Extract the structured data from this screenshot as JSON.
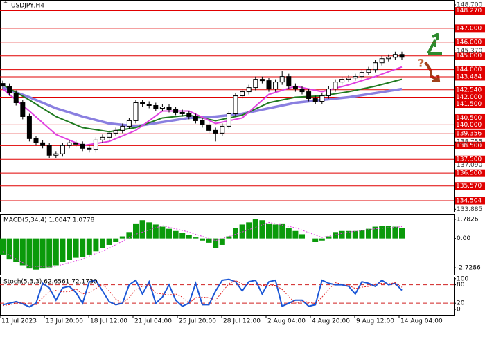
{
  "chart_data": [
    {
      "type": "candlestick",
      "title": "USDJPY,H4",
      "x_labels": [
        "11 Jul 2023",
        "13 Jul 20:00",
        "18 Jul 12:00",
        "21 Jul 04:00",
        "25 Jul 20:00",
        "28 Jul 12:00",
        "2 Aug 04:00",
        "4 Aug 20:00",
        "9 Aug 12:00",
        "14 Aug 04:00"
      ],
      "open": [
        143.0,
        142.8,
        142.3,
        141.6,
        140.6,
        139.0,
        138.7,
        138.5,
        137.8,
        137.9,
        138.5,
        138.7,
        138.6,
        138.3,
        138.2,
        138.9,
        139.1,
        139.4,
        139.6,
        139.9,
        140.3,
        141.6,
        141.5,
        141.4,
        141.2,
        141.3,
        141.1,
        140.9,
        140.8,
        140.6,
        140.3,
        140.0,
        139.6,
        139.4,
        139.9,
        140.8,
        142.1,
        142.4,
        142.7,
        143.3,
        143.2,
        142.6,
        143.1,
        143.5,
        142.8,
        142.6,
        142.4,
        141.9,
        141.7,
        142.1,
        142.6,
        143.1,
        143.3,
        143.4,
        143.5,
        143.8,
        144.0,
        144.5,
        144.8,
        144.9,
        145.1
      ],
      "high": [
        143.2,
        143.0,
        142.5,
        141.8,
        140.8,
        139.2,
        138.9,
        138.7,
        138.1,
        138.7,
        138.9,
        138.9,
        138.8,
        138.5,
        139.1,
        139.3,
        139.6,
        139.8,
        140.1,
        140.5,
        141.8,
        141.8,
        141.7,
        141.6,
        141.5,
        141.5,
        141.3,
        141.1,
        141.0,
        140.8,
        140.5,
        140.2,
        139.8,
        140.1,
        141.0,
        142.3,
        142.6,
        142.9,
        143.5,
        143.5,
        143.4,
        143.3,
        143.9,
        143.7,
        143.0,
        142.8,
        142.6,
        142.1,
        142.3,
        142.8,
        143.3,
        143.5,
        143.6,
        143.7,
        144.0,
        144.2,
        144.7,
        145.0,
        145.1,
        145.3,
        145.3
      ],
      "low": [
        142.6,
        142.1,
        141.4,
        140.4,
        138.8,
        138.5,
        138.3,
        137.6,
        137.6,
        137.7,
        138.3,
        138.4,
        138.1,
        138.0,
        138.0,
        138.7,
        138.9,
        139.2,
        139.4,
        139.7,
        140.1,
        141.3,
        141.2,
        141.0,
        141.0,
        140.9,
        140.7,
        140.6,
        140.4,
        140.1,
        139.8,
        139.4,
        138.8,
        139.2,
        139.7,
        140.6,
        141.9,
        142.2,
        142.5,
        143.0,
        142.4,
        142.4,
        142.9,
        142.6,
        142.4,
        142.2,
        141.7,
        141.5,
        141.5,
        141.9,
        142.4,
        142.9,
        143.1,
        143.2,
        143.3,
        143.6,
        143.8,
        144.3,
        144.6,
        144.7,
        144.7
      ],
      "close": [
        142.8,
        142.3,
        141.6,
        140.6,
        139.0,
        138.7,
        138.5,
        137.8,
        137.9,
        138.5,
        138.7,
        138.6,
        138.3,
        138.2,
        138.9,
        139.1,
        139.4,
        139.6,
        139.9,
        140.3,
        141.6,
        141.5,
        141.4,
        141.2,
        141.3,
        141.1,
        140.9,
        140.8,
        140.6,
        140.3,
        140.0,
        139.6,
        139.4,
        139.9,
        140.8,
        142.1,
        142.4,
        142.7,
        143.3,
        143.2,
        142.6,
        143.1,
        143.5,
        142.8,
        142.6,
        142.4,
        141.9,
        141.7,
        142.1,
        142.6,
        143.1,
        143.3,
        143.4,
        143.5,
        143.8,
        144.0,
        144.5,
        144.8,
        144.9,
        145.1,
        144.9
      ],
      "moving_averages": {
        "x": [
          0,
          4,
          8,
          12,
          16,
          20,
          24,
          28,
          32,
          36,
          40,
          44,
          48,
          52,
          56,
          60
        ],
        "series": [
          {
            "color": "#8a7fe0",
            "values": [
              142.7,
              142.0,
              141.2,
              140.6,
              140.1,
              139.9,
              140.2,
              140.5,
              140.6,
              140.8,
              141.2,
              141.6,
              141.8,
              142.0,
              142.3,
              142.6
            ]
          },
          {
            "color": "#1f7a1f",
            "values": [
              142.9,
              141.8,
              140.6,
              139.8,
              139.5,
              139.8,
              140.5,
              140.7,
              140.3,
              140.7,
              141.6,
              142.0,
              142.1,
              142.4,
              142.8,
              143.3
            ]
          },
          {
            "color": "#e040e0",
            "values": [
              142.6,
              141.0,
              139.3,
              138.5,
              138.8,
              139.6,
              141.0,
              141.0,
              140.1,
              140.5,
              142.2,
              142.8,
              142.4,
              142.9,
              143.5,
              144.2
            ]
          }
        ]
      },
      "ylim": [
        133.7,
        149.0
      ],
      "yticks": [
        {
          "value": 148.7,
          "label": "148.700"
        },
        {
          "value": 145.37,
          "label": "145.370"
        },
        {
          "value": 138.755,
          "label": "138.755"
        },
        {
          "value": 137.09,
          "label": "137.090"
        },
        {
          "value": 133.885,
          "label": "133.885"
        }
      ],
      "levels": [
        {
          "value": 148.27,
          "label": "148.270"
        },
        {
          "value": 147,
          "label": "147.000"
        },
        {
          "value": 146,
          "label": "146.000"
        },
        {
          "value": 145,
          "label": "145.000"
        },
        {
          "value": 144,
          "label": "144.000"
        },
        143.484,
        {
          "value": 142.54,
          "label": "142.540"
        },
        {
          "value": 142,
          "label": "142.000"
        },
        {
          "value": 141.5,
          "label": "141.500"
        },
        {
          "value": 140.5,
          "label": "140.500"
        },
        {
          "value": 140,
          "label": "140.000"
        },
        139.356,
        {
          "value": 138.5,
          "label": "138.500"
        },
        {
          "value": 137.5,
          "label": "137.500"
        },
        {
          "value": 136.5,
          "label": "136.500"
        },
        {
          "value": 135.57,
          "label": "135.570"
        },
        134.504
      ],
      "level_color": "#e00000",
      "annotation": "?"
    },
    {
      "type": "macd",
      "title": "MACD(5,34,4) 1.0047 1.0778",
      "color": "#0a9a0a",
      "values": [
        -1.5,
        -1.9,
        -2.2,
        -2.5,
        -2.8,
        -2.9,
        -2.8,
        -2.7,
        -2.5,
        -2.2,
        -2.0,
        -1.8,
        -1.7,
        -1.5,
        -1.2,
        -0.9,
        -0.6,
        -0.3,
        0.2,
        0.6,
        1.4,
        1.7,
        1.5,
        1.3,
        1.1,
        0.9,
        0.7,
        0.5,
        0.3,
        0.1,
        -0.2,
        -0.4,
        -0.9,
        -0.6,
        0.2,
        1.0,
        1.3,
        1.5,
        1.8,
        1.7,
        1.4,
        1.3,
        1.4,
        1.0,
        0.7,
        0.4,
        0.0,
        -0.3,
        -0.2,
        0.2,
        0.6,
        0.7,
        0.7,
        0.7,
        0.8,
        0.9,
        1.1,
        1.2,
        1.2,
        1.1,
        1.0
      ],
      "signal": {
        "color": "#e040e0",
        "x": [
          0,
          4,
          8,
          12,
          16,
          20,
          24,
          28,
          32,
          36,
          40,
          44,
          48,
          52,
          56,
          60
        ],
        "values": [
          -1.2,
          -2.6,
          -2.6,
          -1.9,
          -0.9,
          0.4,
          1.2,
          0.6,
          -0.2,
          0.6,
          1.5,
          1.0,
          0.1,
          0.6,
          0.9,
          1.1
        ]
      },
      "ylim": [
        -3.37,
        2.23
      ],
      "yticks": [
        1.7826,
        {
          "value": 0,
          "label": "0.00"
        },
        -2.7286
      ]
    },
    {
      "type": "stoch",
      "title": "Stoch(5,3,3) 62.6561 72.1730",
      "series": [
        {
          "color": "#1a56d6",
          "values": [
            15,
            20,
            25,
            18,
            8,
            20,
            85,
            70,
            30,
            70,
            75,
            55,
            20,
            90,
            95,
            60,
            25,
            15,
            20,
            80,
            95,
            50,
            90,
            20,
            40,
            80,
            30,
            10,
            20,
            85,
            15,
            15,
            60,
            95,
            98,
            90,
            60,
            90,
            95,
            50,
            90,
            95,
            10,
            20,
            30,
            30,
            10,
            15,
            95,
            85,
            80,
            80,
            75,
            50,
            90,
            85,
            75,
            95,
            80,
            85,
            62
          ]
        },
        {
          "color": "#e02020",
          "values": [
            12,
            15,
            20,
            21,
            17,
            15,
            38,
            58,
            62,
            57,
            58,
            67,
            50,
            55,
            68,
            82,
            60,
            33,
            20,
            38,
            65,
            75,
            78,
            53,
            50,
            47,
            50,
            40,
            20,
            38,
            40,
            38,
            30,
            57,
            84,
            94,
            83,
            80,
            82,
            78,
            78,
            78,
            65,
            42,
            20,
            27,
            23,
            18,
            40,
            65,
            87,
            82,
            78,
            68,
            72,
            75,
            83,
            85,
            83,
            87,
            72
          ]
        }
      ],
      "ylim": [
        -18,
        104
      ],
      "yticks": [
        100,
        80,
        20,
        0
      ],
      "levels": [
        80,
        20
      ],
      "level_color": "#d02020"
    }
  ]
}
